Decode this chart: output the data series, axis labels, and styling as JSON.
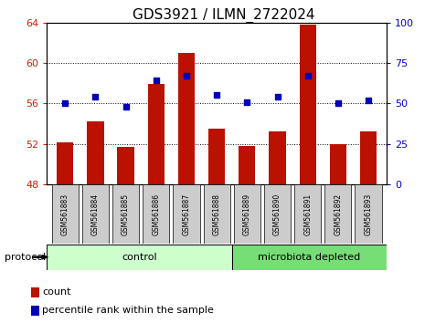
{
  "title": "GDS3921 / ILMN_2722024",
  "samples": [
    "GSM561883",
    "GSM561884",
    "GSM561885",
    "GSM561886",
    "GSM561887",
    "GSM561888",
    "GSM561889",
    "GSM561890",
    "GSM561891",
    "GSM561892",
    "GSM561893"
  ],
  "count_values": [
    52.1,
    54.2,
    51.7,
    57.9,
    61.0,
    53.5,
    51.8,
    53.2,
    63.8,
    52.0,
    53.2
  ],
  "percentile_values": [
    50,
    54,
    48,
    64,
    67,
    55,
    51,
    54,
    67,
    50,
    52
  ],
  "ylim_left": [
    48,
    64
  ],
  "ylim_right": [
    0,
    100
  ],
  "yticks_left": [
    48,
    52,
    56,
    60,
    64
  ],
  "yticks_right": [
    0,
    25,
    50,
    75,
    100
  ],
  "bar_color": "#bb1100",
  "dot_color": "#0000bb",
  "bar_base": 48,
  "control_samples": 6,
  "control_label": "control",
  "microbiota_label": "microbiota depleted",
  "protocol_label": "protocol",
  "legend_count": "count",
  "legend_percentile": "percentile rank within the sample",
  "control_color": "#ccffcc",
  "microbiota_color": "#77dd77",
  "title_fontsize": 11,
  "axis_color_left": "#cc2200",
  "axis_color_right": "#0000cc",
  "sample_box_color": "#cccccc",
  "fig_width": 4.89,
  "fig_height": 3.54,
  "fig_dpi": 100
}
